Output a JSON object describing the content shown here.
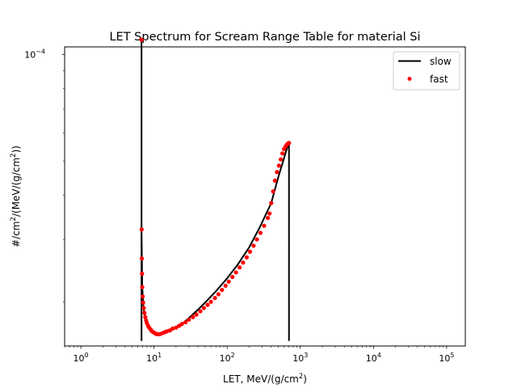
{
  "chart_data": {
    "type": "line",
    "title": "LET Spectrum for Scream Range Table for material Si",
    "xlabel": {
      "main": "LET, MeV/(g/cm",
      "sup": "2",
      "tail": ")"
    },
    "ylabel": {
      "a": "#/cm",
      "a_sup": "2",
      "b": "/(MeV/(g/cm",
      "b_sup": "2",
      "c": "))"
    },
    "xscale": "log",
    "yscale": "log",
    "xlim": [
      0.6,
      180000
    ],
    "ylim": [
      1.5e-05,
      0.000105
    ],
    "x_ticks": [
      {
        "value": 1,
        "base": "10",
        "exp": "0"
      },
      {
        "value": 10,
        "base": "10",
        "exp": "1"
      },
      {
        "value": 100,
        "base": "10",
        "exp": "2"
      },
      {
        "value": 1000,
        "base": "10",
        "exp": "3"
      },
      {
        "value": 10000,
        "base": "10",
        "exp": "4"
      },
      {
        "value": 100000,
        "base": "10",
        "exp": "5"
      }
    ],
    "y_ticks": [
      {
        "value": 0.0001,
        "base": "10",
        "exp": "−4"
      }
    ],
    "legend_position": "top-right",
    "grid": false,
    "series": [
      {
        "name": "slow",
        "style": "line",
        "color": "#000000",
        "x": [
          6.75,
          6.75,
          6.75,
          6.9,
          7.2,
          7.6,
          8.2,
          9,
          10,
          11,
          12,
          14,
          16,
          20,
          25,
          30,
          40,
          50,
          70,
          100,
          140,
          200,
          280,
          400,
          500,
          600,
          680,
          700,
          700
        ],
        "y": [
          1.55e-05,
          0.00011,
          3.2e-05,
          2.2e-05,
          1.92e-05,
          1.78e-05,
          1.7e-05,
          1.65e-05,
          1.63e-05,
          1.62e-05,
          1.62e-05,
          1.63e-05,
          1.65e-05,
          1.69e-05,
          1.74e-05,
          1.8e-05,
          1.9e-05,
          1.99e-05,
          2.14e-05,
          2.33e-05,
          2.55e-05,
          2.85e-05,
          3.25e-05,
          3.8e-05,
          4.5e-05,
          5.1e-05,
          5.55e-05,
          5.6e-05,
          1.55e-05
        ]
      },
      {
        "name": "fast",
        "style": "markers",
        "color": "#ff0000",
        "x": [
          6.75,
          6.78,
          6.82,
          6.86,
          6.9,
          7.0,
          7.1,
          7.25,
          7.4,
          7.6,
          7.8,
          8.0,
          8.3,
          8.6,
          9.0,
          9.4,
          9.8,
          10.3,
          10.8,
          11.4,
          12,
          13,
          14,
          15,
          16.5,
          18,
          20,
          22,
          24,
          27,
          30,
          34,
          38,
          43,
          48,
          54,
          60,
          68,
          76,
          85,
          95,
          105,
          118,
          132,
          148,
          165,
          185,
          205,
          230,
          255,
          285,
          320,
          360,
          380,
          400,
          425,
          450,
          480,
          510,
          540,
          570,
          600,
          630,
          660,
          690,
          700
        ],
        "y": [
          0.00011,
          3.2e-05,
          2.65e-05,
          2.4e-05,
          2.2e-05,
          2.07e-05,
          1.99e-05,
          1.92e-05,
          1.86e-05,
          1.81e-05,
          1.77e-05,
          1.74e-05,
          1.71e-05,
          1.69e-05,
          1.67e-05,
          1.65e-05,
          1.64e-05,
          1.63e-05,
          1.62e-05,
          1.62e-05,
          1.62e-05,
          1.63e-05,
          1.64e-05,
          1.65e-05,
          1.66e-05,
          1.68e-05,
          1.69e-05,
          1.71e-05,
          1.73e-05,
          1.75e-05,
          1.78e-05,
          1.81e-05,
          1.84e-05,
          1.88e-05,
          1.92e-05,
          1.96e-05,
          2e-05,
          2.05e-05,
          2.1e-05,
          2.16e-05,
          2.22e-05,
          2.28e-05,
          2.35e-05,
          2.42e-05,
          2.5e-05,
          2.58e-05,
          2.67e-05,
          2.77e-05,
          2.88e-05,
          3e-05,
          3.13e-05,
          3.28e-05,
          3.45e-05,
          3.55e-05,
          3.8e-05,
          4.1e-05,
          4.4e-05,
          4.65e-05,
          4.85e-05,
          5.05e-05,
          5.25e-05,
          5.4e-05,
          5.5e-05,
          5.57e-05,
          5.61e-05,
          5.62e-05
        ]
      }
    ]
  }
}
